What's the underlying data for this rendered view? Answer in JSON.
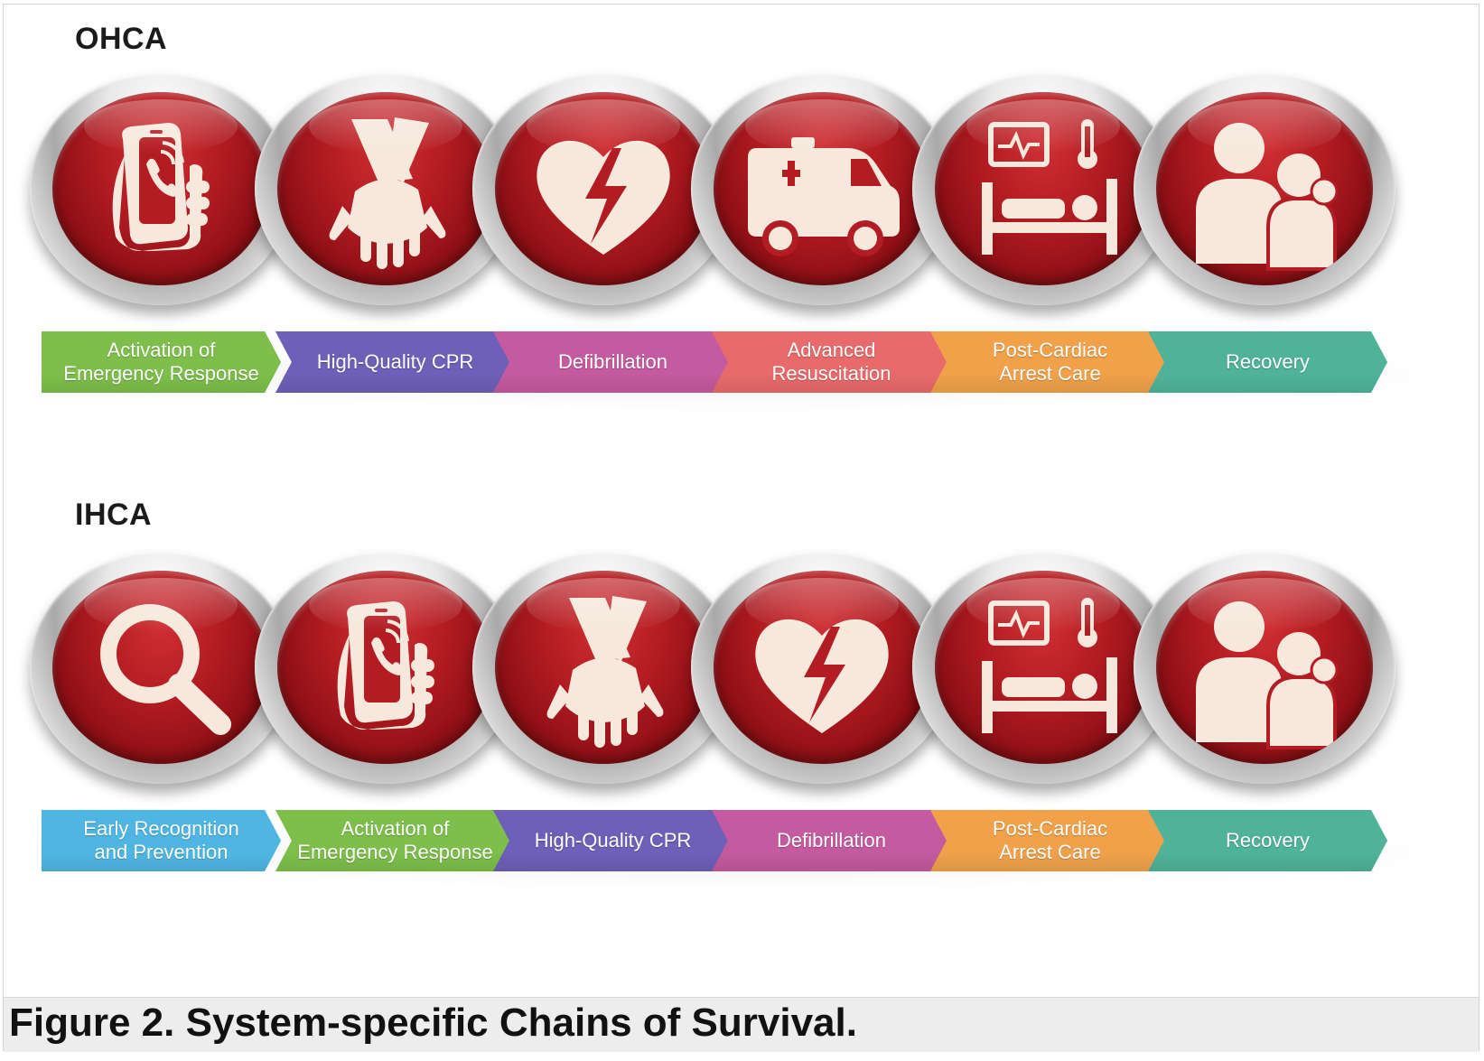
{
  "chains": [
    {
      "label": "OHCA",
      "icons": [
        "phone-icon",
        "cpr-hands-icon",
        "defibrillator-heart-icon",
        "ambulance-icon",
        "hospital-bed-icon",
        "people-icon"
      ],
      "steps": [
        {
          "line1": "Activation of",
          "line2": "Emergency Response",
          "color": "#7dbf4a"
        },
        {
          "line1": "High-Quality CPR",
          "line2": "",
          "color": "#6e5fb8"
        },
        {
          "line1": "Defibrillation",
          "line2": "",
          "color": "#c45a9f"
        },
        {
          "line1": "Advanced",
          "line2": "Resuscitation",
          "color": "#e86a6a"
        },
        {
          "line1": "Post-Cardiac",
          "line2": "Arrest Care",
          "color": "#f0a14a"
        },
        {
          "line1": "Recovery",
          "line2": "",
          "color": "#4fb39a"
        }
      ]
    },
    {
      "label": "IHCA",
      "icons": [
        "magnifier-icon",
        "phone-icon",
        "cpr-hands-icon",
        "defibrillator-heart-icon",
        "hospital-bed-icon",
        "people-icon"
      ],
      "steps": [
        {
          "line1": "Early Recognition",
          "line2": "and Prevention",
          "color": "#4fb6e3"
        },
        {
          "line1": "Activation of",
          "line2": "Emergency Response",
          "color": "#7dbf4a"
        },
        {
          "line1": "High-Quality CPR",
          "line2": "",
          "color": "#6e5fb8"
        },
        {
          "line1": "Defibrillation",
          "line2": "",
          "color": "#c45a9f"
        },
        {
          "line1": "Post-Cardiac",
          "line2": "Arrest Care",
          "color": "#f0a14a"
        },
        {
          "line1": "Recovery",
          "line2": "",
          "color": "#4fb39a"
        }
      ]
    }
  ],
  "caption": "Figure 2. System-specific Chains of Survival."
}
